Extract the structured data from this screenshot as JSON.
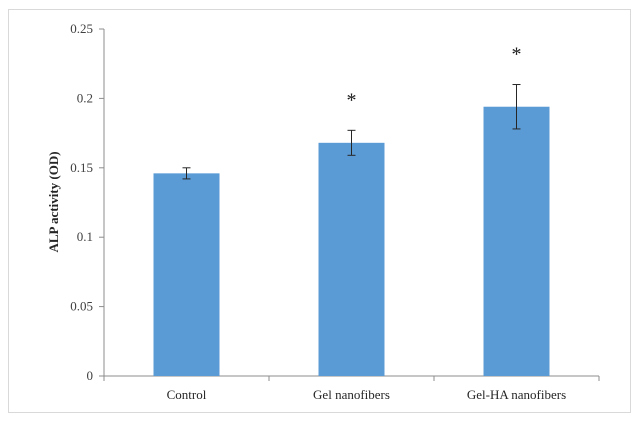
{
  "chart_data": {
    "type": "bar",
    "categories": [
      "Control",
      "Gel nanofibers",
      "Gel-HA nanofibers"
    ],
    "values": [
      0.146,
      0.168,
      0.194
    ],
    "error": [
      0.004,
      0.009,
      0.016
    ],
    "annotations": [
      "",
      "*",
      "*"
    ],
    "title": "",
    "xlabel": "",
    "ylabel": "ALP activity (OD)",
    "ylim": [
      0,
      0.25
    ],
    "yticks": [
      0,
      0.05,
      0.1,
      0.15,
      0.2,
      0.25
    ],
    "ytick_labels": [
      "0",
      "0.05",
      "0.1",
      "0.15",
      "0.2",
      "0.25"
    ],
    "grid": false,
    "legend": "none",
    "bar_color": "#5b9bd5"
  }
}
